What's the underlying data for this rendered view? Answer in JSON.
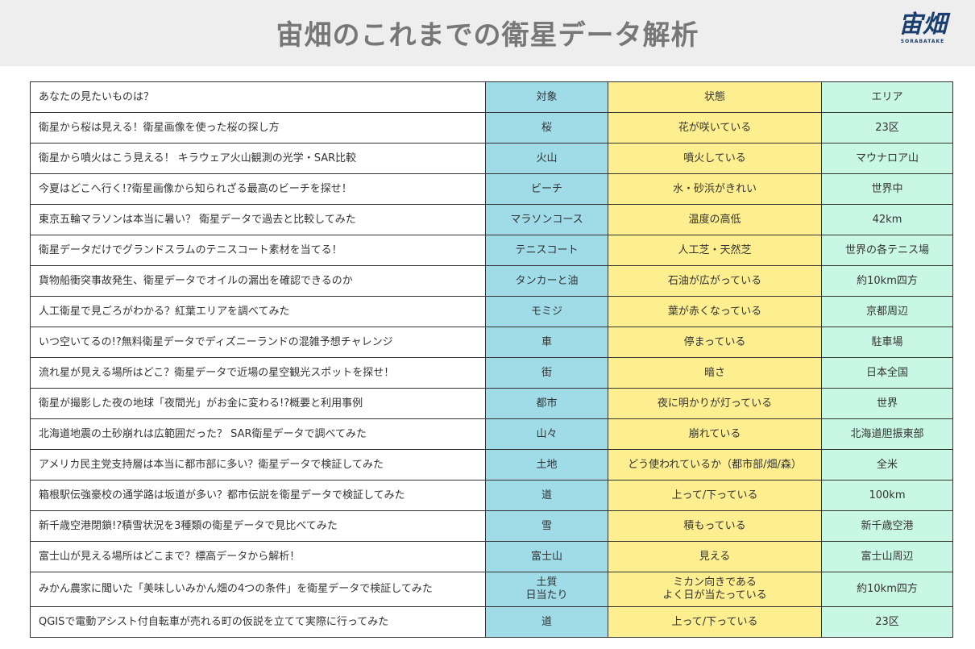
{
  "header": {
    "title": "宙畑のこれまでの衛星データ解析",
    "logo_text": "宙畑",
    "logo_subtext": "SORABATAKE"
  },
  "table": {
    "columns": [
      "あなたの見たいものは？",
      "対象",
      "状態",
      "エリア"
    ],
    "rows": [
      [
        "衛星から桜は見える！衛星画像を使った桜の探し方",
        "桜",
        "花が咲いている",
        "23区"
      ],
      [
        "衛星から噴火はこう見える！ キラウェア火山観測の光学・SAR比較",
        "火山",
        "噴火している",
        "マウナロア山"
      ],
      [
        "今夏はどこへ行く!?衛星画像から知られざる最高のビーチを探せ！",
        "ビーチ",
        "水・砂浜がきれい",
        "世界中"
      ],
      [
        "東京五輪マラソンは本当に暑い？ 衛星データで過去と比較してみた",
        "マラソンコース",
        "温度の高低",
        "42km"
      ],
      [
        "衛星データだけでグランドスラムのテニスコート素材を当てる！",
        "テニスコート",
        "人工芝・天然芝",
        "世界の各テニス場"
      ],
      [
        "貨物船衝突事故発生、衛星データでオイルの漏出を確認できるのか",
        "タンカーと油",
        "石油が広がっている",
        "約10km四方"
      ],
      [
        "人工衛星で見ごろがわかる？紅葉エリアを調べてみた",
        "モミジ",
        "葉が赤くなっている",
        "京都周辺"
      ],
      [
        "いつ空いてるの!?無料衛星データでディズニーランドの混雑予想チャレンジ",
        "車",
        "停まっている",
        "駐車場"
      ],
      [
        "流れ星が見える場所はどこ？衛星データで近場の星空観光スポットを探せ！",
        "街",
        "暗さ",
        "日本全国"
      ],
      [
        "衛星が撮影した夜の地球「夜間光」がお金に変わる!?概要と利用事例",
        "都市",
        "夜に明かりが灯っている",
        "世界"
      ],
      [
        "北海道地震の土砂崩れは広範囲だった？ SAR衛星データで調べてみた",
        "山々",
        "崩れている",
        "北海道胆振東部"
      ],
      [
        "アメリカ民主党支持層は本当に都市部に多い？衛星データで検証してみた",
        "土地",
        "どう使われているか（都市部/畑/森）",
        "全米"
      ],
      [
        "箱根駅伝強豪校の通学路は坂道が多い？都市伝説を衛星データで検証してみた",
        "道",
        "上って/下っている",
        "100km"
      ],
      [
        "新千歳空港閉鎖!?積雪状況を3種類の衛星データで見比べてみた",
        "雪",
        "積もっている",
        "新千歳空港"
      ],
      [
        "富士山が見える場所はどこまで？標高データから解析！",
        "富士山",
        "見える",
        "富士山周辺"
      ],
      [
        "みかん農家に聞いた「美味しいみかん畑の4つの条件」を衛星データで検証してみた",
        "土質\n日当たり",
        "ミカン向きである\nよく日が当たっている",
        "約10km四方"
      ],
      [
        "QGISで電動アシスト付自転車が売れる町の仮説を立てて実際に行ってみた",
        "道",
        "上って/下っている",
        "23区"
      ]
    ]
  }
}
